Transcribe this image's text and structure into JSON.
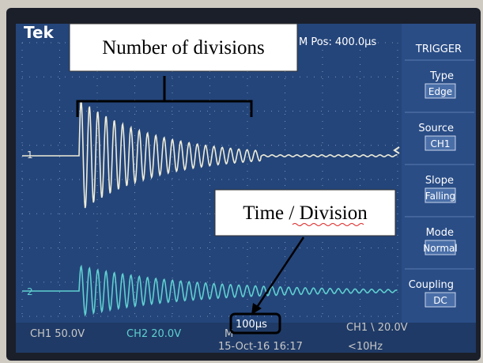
{
  "screen": {
    "brand": "Tek",
    "position": "M Pos: 400.0µs",
    "channel_markers": [
      "1",
      "2"
    ]
  },
  "menu": {
    "title": "TRIGGER",
    "items": [
      {
        "label": "Type",
        "value": "Edge"
      },
      {
        "label": "Source",
        "value": "CH1"
      },
      {
        "label": "Slope",
        "value": "Falling"
      },
      {
        "label": "Mode",
        "value": "Normal"
      },
      {
        "label": "Coupling",
        "value": "DC"
      }
    ]
  },
  "status": {
    "ch1_scale": "CH1  50.0V",
    "ch2_scale": "CH2  20.0V",
    "time_prefix": "M",
    "time_scale": "100µs",
    "trigger": "CH1 \\ 20.0V",
    "date": "15-Oct-16 16:17",
    "frequency": "<10Hz"
  },
  "annotations": {
    "divisions": "Number of divisions",
    "time_per_division": "Time / Division"
  }
}
